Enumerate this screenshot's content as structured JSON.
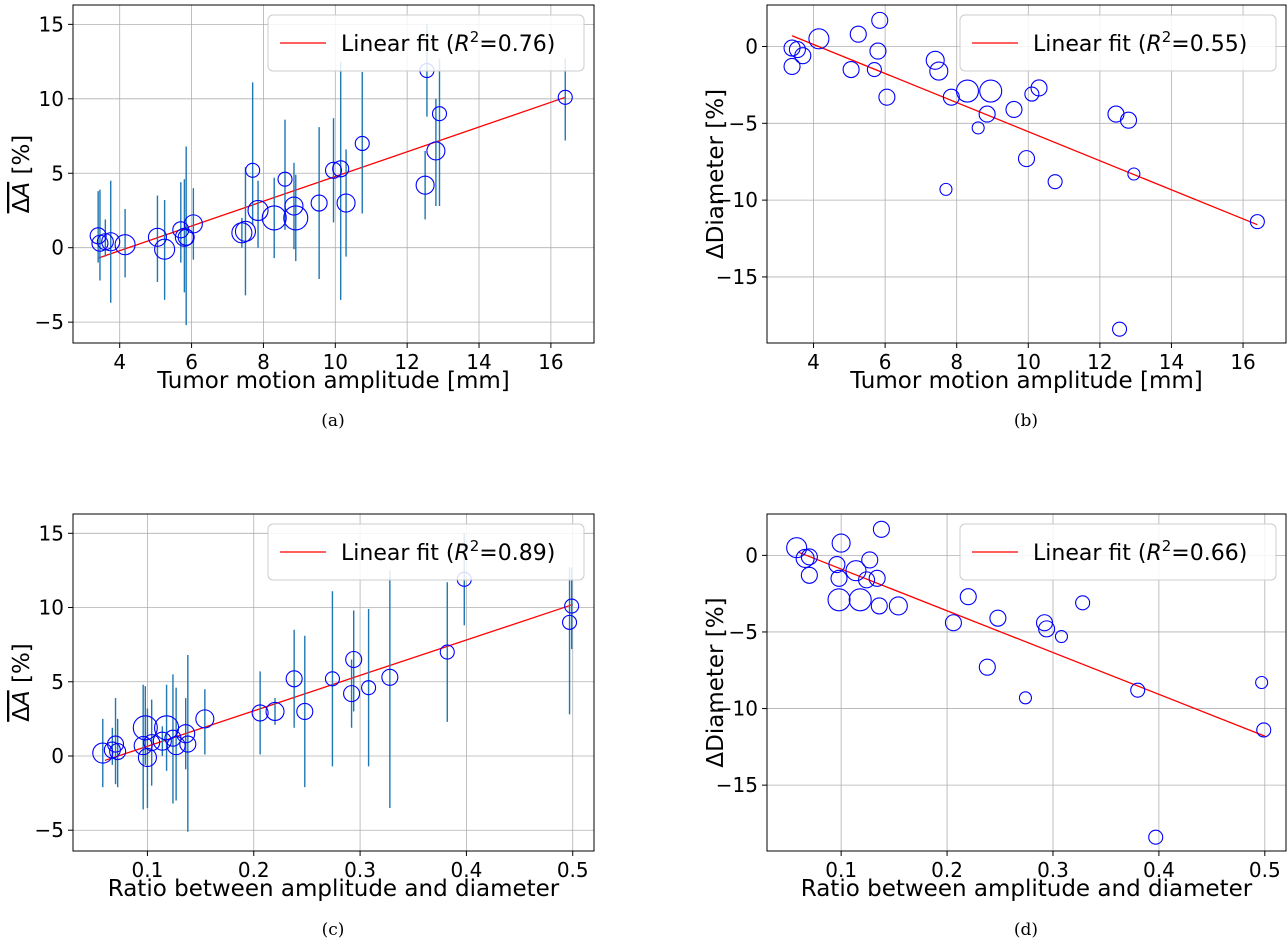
{
  "figure": {
    "panels": [
      {
        "caption": "(a)",
        "ylabel_main": "ΔA",
        "ylabel_unit": " [%]",
        "ylabel_overline": true
      },
      {
        "caption": "(b)",
        "ylabel_main": "ΔDiameter",
        "ylabel_unit": " [%]",
        "ylabel_overline": false
      },
      {
        "caption": "(c)",
        "ylabel_main": "ΔA",
        "ylabel_unit": " [%]",
        "ylabel_overline": true
      },
      {
        "caption": "(d)",
        "ylabel_main": "ΔDiameter",
        "ylabel_unit": " [%]",
        "ylabel_overline": false
      }
    ]
  },
  "chart_data": [
    {
      "type": "scatter",
      "title": "",
      "xlabel": "Tumor motion amplitude [mm]",
      "ylabel": "ΔA [%]",
      "xlim": [
        2.7,
        17.2
      ],
      "ylim": [
        -6.4,
        16.3
      ],
      "xticks": [
        4,
        6,
        8,
        10,
        12,
        14,
        16
      ],
      "yticks": [
        -5,
        0,
        5,
        10,
        15
      ],
      "grid": true,
      "legend": {
        "position": "top-right",
        "label_prefix": "Linear fit (",
        "label_r": "R",
        "label_sq": "2",
        "label_suffix": "=0.76)"
      },
      "fit_line": {
        "x": [
          3.4,
          16.4
        ],
        "y": [
          -0.7,
          10.1
        ],
        "color": "#ff0000"
      },
      "marker_color": "#0000ff",
      "errorbar_color": "#1f77b4",
      "points": [
        {
          "x": 3.4,
          "y": 0.8,
          "err_lo": 1.8,
          "err_hi": 3.0,
          "size": 8
        },
        {
          "x": 3.45,
          "y": 0.3,
          "err_lo": 2.5,
          "err_hi": 3.6,
          "size": 8
        },
        {
          "x": 3.6,
          "y": 0.4,
          "err_lo": 1.0,
          "err_hi": 1.5,
          "size": 8
        },
        {
          "x": 3.75,
          "y": 0.4,
          "err_lo": 4.1,
          "err_hi": 4.1,
          "size": 9
        },
        {
          "x": 4.15,
          "y": 0.2,
          "err_lo": 2.2,
          "err_hi": 2.4,
          "size": 10
        },
        {
          "x": 5.05,
          "y": 0.7,
          "err_lo": 3.0,
          "err_hi": 2.8,
          "size": 9
        },
        {
          "x": 5.25,
          "y": -0.1,
          "err_lo": 3.4,
          "err_hi": 3.3,
          "size": 10
        },
        {
          "x": 5.7,
          "y": 1.2,
          "err_lo": 2.2,
          "err_hi": 3.2,
          "size": 8
        },
        {
          "x": 5.8,
          "y": 0.7,
          "err_lo": 3.7,
          "err_hi": 3.9,
          "size": 9
        },
        {
          "x": 5.85,
          "y": 0.7,
          "err_lo": 5.9,
          "err_hi": 6.1,
          "size": 8
        },
        {
          "x": 6.05,
          "y": 1.6,
          "err_lo": 2.4,
          "err_hi": 2.4,
          "size": 9
        },
        {
          "x": 7.4,
          "y": 1.0,
          "err_lo": 1.0,
          "err_hi": 1.0,
          "size": 10
        },
        {
          "x": 7.5,
          "y": 1.1,
          "err_lo": 4.3,
          "err_hi": 4.3,
          "size": 10
        },
        {
          "x": 7.7,
          "y": 5.2,
          "err_lo": 3.7,
          "err_hi": 5.9,
          "size": 7
        },
        {
          "x": 7.85,
          "y": 2.5,
          "err_lo": 2.5,
          "err_hi": 2.0,
          "size": 10
        },
        {
          "x": 8.3,
          "y": 2.0,
          "err_lo": 2.7,
          "err_hi": 2.7,
          "size": 12
        },
        {
          "x": 8.6,
          "y": 4.6,
          "err_lo": 3.4,
          "err_hi": 4.0,
          "size": 7
        },
        {
          "x": 8.85,
          "y": 2.8,
          "err_lo": 2.9,
          "err_hi": 2.9,
          "size": 9
        },
        {
          "x": 8.9,
          "y": 2.0,
          "err_lo": 2.9,
          "err_hi": 2.9,
          "size": 12
        },
        {
          "x": 9.55,
          "y": 3.0,
          "err_lo": 5.1,
          "err_hi": 5.1,
          "size": 8
        },
        {
          "x": 9.95,
          "y": 5.2,
          "err_lo": 3.5,
          "err_hi": 3.5,
          "size": 8
        },
        {
          "x": 10.15,
          "y": 5.3,
          "err_lo": 8.8,
          "err_hi": 7.2,
          "size": 8
        },
        {
          "x": 10.3,
          "y": 3.0,
          "err_lo": 3.6,
          "err_hi": 3.6,
          "size": 9
        },
        {
          "x": 10.75,
          "y": 7.0,
          "err_lo": 4.7,
          "err_hi": 4.8,
          "size": 7
        },
        {
          "x": 12.5,
          "y": 4.2,
          "err_lo": 2.3,
          "err_hi": 2.3,
          "size": 9
        },
        {
          "x": 12.55,
          "y": 11.9,
          "err_lo": 3.1,
          "err_hi": 3.1,
          "size": 7
        },
        {
          "x": 12.8,
          "y": 6.5,
          "err_lo": 3.7,
          "err_hi": 3.5,
          "size": 9
        },
        {
          "x": 12.9,
          "y": 9.0,
          "err_lo": 6.2,
          "err_hi": 3.7,
          "size": 7
        },
        {
          "x": 16.4,
          "y": 10.1,
          "err_lo": 2.9,
          "err_hi": 2.6,
          "size": 7
        }
      ]
    },
    {
      "type": "scatter",
      "title": "",
      "xlabel": "Tumor motion amplitude [mm]",
      "ylabel": "ΔDiameter [%]",
      "xlim": [
        2.7,
        17.2
      ],
      "ylim": [
        -19.3,
        2.7
      ],
      "xticks": [
        4,
        6,
        8,
        10,
        12,
        14,
        16
      ],
      "yticks": [
        -15,
        -10,
        -5,
        0
      ],
      "grid": true,
      "legend": {
        "position": "top-right",
        "label_prefix": "Linear fit (",
        "label_r": "R",
        "label_sq": "2",
        "label_suffix": "=0.55)"
      },
      "fit_line": {
        "x": [
          3.4,
          16.4
        ],
        "y": [
          0.7,
          -11.6
        ],
        "color": "#ff0000"
      },
      "marker_color": "#0000ff",
      "points": [
        {
          "x": 3.4,
          "y": -0.1,
          "size": 8
        },
        {
          "x": 3.4,
          "y": -1.3,
          "size": 8
        },
        {
          "x": 3.55,
          "y": -0.2,
          "size": 8
        },
        {
          "x": 3.7,
          "y": -0.6,
          "size": 8
        },
        {
          "x": 4.15,
          "y": 0.5,
          "size": 10
        },
        {
          "x": 5.05,
          "y": -1.5,
          "size": 8
        },
        {
          "x": 5.25,
          "y": 0.8,
          "size": 8
        },
        {
          "x": 5.7,
          "y": -1.5,
          "size": 7
        },
        {
          "x": 5.8,
          "y": -0.3,
          "size": 8
        },
        {
          "x": 5.85,
          "y": 1.7,
          "size": 8
        },
        {
          "x": 6.05,
          "y": -3.3,
          "size": 8
        },
        {
          "x": 7.4,
          "y": -0.9,
          "size": 9
        },
        {
          "x": 7.5,
          "y": -1.6,
          "size": 9
        },
        {
          "x": 7.7,
          "y": -9.3,
          "size": 6
        },
        {
          "x": 7.85,
          "y": -3.3,
          "size": 8
        },
        {
          "x": 8.3,
          "y": -2.9,
          "size": 11
        },
        {
          "x": 8.6,
          "y": -5.3,
          "size": 6
        },
        {
          "x": 8.85,
          "y": -4.4,
          "size": 8
        },
        {
          "x": 8.95,
          "y": -2.9,
          "size": 11
        },
        {
          "x": 9.6,
          "y": -4.1,
          "size": 8
        },
        {
          "x": 9.95,
          "y": -7.3,
          "size": 8
        },
        {
          "x": 10.1,
          "y": -3.1,
          "size": 7
        },
        {
          "x": 10.3,
          "y": -2.7,
          "size": 8
        },
        {
          "x": 10.75,
          "y": -8.8,
          "size": 7
        },
        {
          "x": 12.45,
          "y": -4.4,
          "size": 8
        },
        {
          "x": 12.55,
          "y": -18.4,
          "size": 7
        },
        {
          "x": 12.8,
          "y": -4.8,
          "size": 8
        },
        {
          "x": 12.95,
          "y": -8.3,
          "size": 6
        },
        {
          "x": 16.4,
          "y": -11.4,
          "size": 7
        }
      ]
    },
    {
      "type": "scatter",
      "title": "",
      "xlabel": "Ratio between amplitude and diameter",
      "ylabel": "ΔA [%]",
      "xlim": [
        0.03,
        0.52
      ],
      "ylim": [
        -6.4,
        16.3
      ],
      "xticks": [
        0.1,
        0.2,
        0.3,
        0.4,
        0.5
      ],
      "yticks": [
        -5,
        0,
        5,
        10,
        15
      ],
      "grid": true,
      "legend": {
        "position": "top-right",
        "label_prefix": "Linear fit (",
        "label_r": "R",
        "label_sq": "2",
        "label_suffix": "=0.89)"
      },
      "fit_line": {
        "x": [
          0.06,
          0.5
        ],
        "y": [
          -0.3,
          10.2
        ],
        "color": "#ff0000"
      },
      "marker_color": "#0000ff",
      "errorbar_color": "#1f77b4",
      "points": [
        {
          "x": 0.058,
          "y": 0.2,
          "err_lo": 2.3,
          "err_hi": 2.3,
          "size": 10
        },
        {
          "x": 0.067,
          "y": 0.4,
          "err_lo": 1.0,
          "err_hi": 1.5,
          "size": 8
        },
        {
          "x": 0.07,
          "y": 0.8,
          "err_lo": 2.7,
          "err_hi": 3.1,
          "size": 8
        },
        {
          "x": 0.072,
          "y": 0.3,
          "err_lo": 2.4,
          "err_hi": 2.2,
          "size": 8
        },
        {
          "x": 0.096,
          "y": 0.7,
          "err_lo": 4.3,
          "err_hi": 4.1,
          "size": 9
        },
        {
          "x": 0.098,
          "y": 1.9,
          "err_lo": 2.5,
          "err_hi": 2.8,
          "size": 12
        },
        {
          "x": 0.1,
          "y": -0.1,
          "err_lo": 3.4,
          "err_hi": 3.3,
          "size": 9
        },
        {
          "x": 0.104,
          "y": 0.9,
          "err_lo": 2.9,
          "err_hi": 2.9,
          "size": 8
        },
        {
          "x": 0.114,
          "y": 1.0,
          "err_lo": 1.0,
          "err_hi": 1.0,
          "size": 9
        },
        {
          "x": 0.118,
          "y": 1.9,
          "err_lo": 2.9,
          "err_hi": 2.9,
          "size": 12
        },
        {
          "x": 0.124,
          "y": 1.2,
          "err_lo": 4.4,
          "err_hi": 4.3,
          "size": 8
        },
        {
          "x": 0.127,
          "y": 0.7,
          "err_lo": 3.7,
          "err_hi": 3.9,
          "size": 9
        },
        {
          "x": 0.136,
          "y": 1.5,
          "err_lo": 2.4,
          "err_hi": 2.4,
          "size": 9
        },
        {
          "x": 0.138,
          "y": 0.8,
          "err_lo": 5.9,
          "err_hi": 6.0,
          "size": 8
        },
        {
          "x": 0.154,
          "y": 2.5,
          "err_lo": 2.4,
          "err_hi": 2.0,
          "size": 9
        },
        {
          "x": 0.206,
          "y": 2.9,
          "err_lo": 2.8,
          "err_hi": 2.8,
          "size": 8
        },
        {
          "x": 0.22,
          "y": 3.0,
          "err_lo": 0.9,
          "err_hi": 0.9,
          "size": 9
        },
        {
          "x": 0.238,
          "y": 5.2,
          "err_lo": 3.3,
          "err_hi": 3.3,
          "size": 8
        },
        {
          "x": 0.248,
          "y": 3.0,
          "err_lo": 5.1,
          "err_hi": 5.1,
          "size": 8
        },
        {
          "x": 0.274,
          "y": 5.2,
          "err_lo": 5.9,
          "err_hi": 5.9,
          "size": 7
        },
        {
          "x": 0.292,
          "y": 4.2,
          "err_lo": 2.3,
          "err_hi": 2.3,
          "size": 8
        },
        {
          "x": 0.294,
          "y": 6.5,
          "err_lo": 3.5,
          "err_hi": 3.3,
          "size": 8
        },
        {
          "x": 0.308,
          "y": 4.6,
          "err_lo": 5.3,
          "err_hi": 5.3,
          "size": 7
        },
        {
          "x": 0.328,
          "y": 5.3,
          "err_lo": 8.8,
          "err_hi": 7.2,
          "size": 8
        },
        {
          "x": 0.382,
          "y": 7.0,
          "err_lo": 4.7,
          "err_hi": 4.7,
          "size": 7
        },
        {
          "x": 0.398,
          "y": 11.9,
          "err_lo": 3.1,
          "err_hi": 3.1,
          "size": 7
        },
        {
          "x": 0.497,
          "y": 9.0,
          "err_lo": 6.2,
          "err_hi": 3.7,
          "size": 7
        },
        {
          "x": 0.499,
          "y": 10.1,
          "err_lo": 2.9,
          "err_hi": 2.6,
          "size": 7
        }
      ]
    },
    {
      "type": "scatter",
      "title": "",
      "xlabel": "Ratio between amplitude and diameter",
      "ylabel": "ΔDiameter [%]",
      "xlim": [
        0.03,
        0.52
      ],
      "ylim": [
        -19.3,
        2.7
      ],
      "xticks": [
        0.1,
        0.2,
        0.3,
        0.4,
        0.5
      ],
      "yticks": [
        -15,
        -10,
        -5,
        0
      ],
      "grid": true,
      "legend": {
        "position": "top-right",
        "label_prefix": "Linear fit (",
        "label_r": "R",
        "label_sq": "2",
        "label_suffix": "=0.66)"
      },
      "fit_line": {
        "x": [
          0.06,
          0.5
        ],
        "y": [
          0.2,
          -11.8
        ],
        "color": "#ff0000"
      },
      "marker_color": "#0000ff",
      "points": [
        {
          "x": 0.058,
          "y": 0.5,
          "size": 10
        },
        {
          "x": 0.066,
          "y": -0.2,
          "size": 9
        },
        {
          "x": 0.07,
          "y": -0.1,
          "size": 8
        },
        {
          "x": 0.07,
          "y": -1.3,
          "size": 8
        },
        {
          "x": 0.096,
          "y": -0.6,
          "size": 8
        },
        {
          "x": 0.098,
          "y": -1.5,
          "size": 8
        },
        {
          "x": 0.1,
          "y": 0.8,
          "size": 9
        },
        {
          "x": 0.098,
          "y": -2.9,
          "size": 11
        },
        {
          "x": 0.114,
          "y": -1.0,
          "size": 10
        },
        {
          "x": 0.118,
          "y": -2.9,
          "size": 11
        },
        {
          "x": 0.124,
          "y": -1.6,
          "size": 8
        },
        {
          "x": 0.127,
          "y": -0.3,
          "size": 8
        },
        {
          "x": 0.134,
          "y": -1.5,
          "size": 8
        },
        {
          "x": 0.136,
          "y": -3.3,
          "size": 8
        },
        {
          "x": 0.138,
          "y": 1.7,
          "size": 8
        },
        {
          "x": 0.154,
          "y": -3.3,
          "size": 9
        },
        {
          "x": 0.206,
          "y": -4.4,
          "size": 8
        },
        {
          "x": 0.22,
          "y": -2.7,
          "size": 8
        },
        {
          "x": 0.238,
          "y": -7.3,
          "size": 8
        },
        {
          "x": 0.248,
          "y": -4.1,
          "size": 8
        },
        {
          "x": 0.274,
          "y": -9.3,
          "size": 6
        },
        {
          "x": 0.292,
          "y": -4.4,
          "size": 8
        },
        {
          "x": 0.294,
          "y": -4.8,
          "size": 8
        },
        {
          "x": 0.308,
          "y": -5.3,
          "size": 6
        },
        {
          "x": 0.328,
          "y": -3.1,
          "size": 7
        },
        {
          "x": 0.38,
          "y": -8.8,
          "size": 7
        },
        {
          "x": 0.397,
          "y": -18.4,
          "size": 7
        },
        {
          "x": 0.497,
          "y": -8.3,
          "size": 6
        },
        {
          "x": 0.499,
          "y": -11.4,
          "size": 7
        }
      ]
    }
  ]
}
